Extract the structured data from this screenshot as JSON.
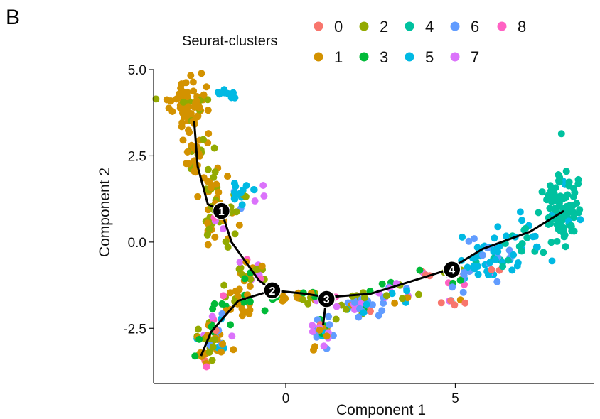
{
  "panel_letter": "B",
  "chart_data": {
    "type": "scatter",
    "xlabel": "Component 1",
    "ylabel": "Component 2",
    "xlim": [
      -3.9,
      9.1
    ],
    "ylim": [
      -4.1,
      5.0
    ],
    "x_ticks": [
      {
        "value": 0,
        "label": "0"
      },
      {
        "value": 5,
        "label": "5"
      }
    ],
    "y_ticks": [
      {
        "value": 5.0,
        "label": "5.0"
      },
      {
        "value": 2.5,
        "label": "2.5"
      },
      {
        "value": 0.0,
        "label": "0.0"
      },
      {
        "value": -2.5,
        "label": "-2.5"
      }
    ],
    "grid": false,
    "legend": {
      "title": "Seurat-clusters",
      "placement": "top",
      "entries": [
        {
          "label": "0",
          "color": "#F8766D"
        },
        {
          "label": "1",
          "color": "#D39200"
        },
        {
          "label": "2",
          "color": "#93AA00"
        },
        {
          "label": "3",
          "color": "#00BA38"
        },
        {
          "label": "4",
          "color": "#00C19F"
        },
        {
          "label": "5",
          "color": "#00B9E3"
        },
        {
          "label": "6",
          "color": "#619CFF"
        },
        {
          "label": "7",
          "color": "#DB72FB"
        },
        {
          "label": "8",
          "color": "#FF61C3"
        }
      ]
    },
    "trajectory": {
      "color": "#000000",
      "segments": [
        [
          [
            -2.7,
            3.5
          ],
          [
            -2.6,
            2.2
          ],
          [
            -2.3,
            1.1
          ],
          [
            -1.9,
            0.9
          ]
        ],
        [
          [
            -1.9,
            0.9
          ],
          [
            -1.6,
            0.0
          ],
          [
            -0.8,
            -1.1
          ],
          [
            -0.4,
            -1.4
          ]
        ],
        [
          [
            -0.4,
            -1.4
          ],
          [
            -1.4,
            -1.7
          ],
          [
            -2.2,
            -2.6
          ],
          [
            -2.5,
            -3.3
          ]
        ],
        [
          [
            -0.4,
            -1.4
          ],
          [
            0.6,
            -1.5
          ],
          [
            1.2,
            -1.6
          ]
        ],
        [
          [
            1.2,
            -1.6
          ],
          [
            1.1,
            -2.4
          ]
        ],
        [
          [
            1.2,
            -1.6
          ],
          [
            2.5,
            -1.5
          ],
          [
            3.5,
            -1.2
          ],
          [
            4.8,
            -0.8
          ]
        ],
        [
          [
            4.8,
            -0.8
          ],
          [
            5.8,
            -0.2
          ],
          [
            7.2,
            0.3
          ],
          [
            8.2,
            0.9
          ]
        ]
      ]
    },
    "branch_points": [
      {
        "label": "1",
        "x": -1.9,
        "y": 0.9
      },
      {
        "label": "2",
        "x": -0.4,
        "y": -1.4
      },
      {
        "label": "3",
        "x": 1.2,
        "y": -1.65
      },
      {
        "label": "4",
        "x": 4.9,
        "y": -0.8
      }
    ],
    "clouds": [
      {
        "cx": -2.85,
        "cy": 4.0,
        "sx": 0.28,
        "sy": 0.35,
        "n": 70,
        "w": [
          0,
          90,
          10,
          0,
          0,
          0,
          0,
          0,
          0
        ]
      },
      {
        "cx": -2.65,
        "cy": 2.6,
        "sx": 0.18,
        "sy": 0.35,
        "n": 30,
        "w": [
          0,
          70,
          30,
          0,
          0,
          0,
          0,
          0,
          0
        ]
      },
      {
        "cx": -2.2,
        "cy": 1.6,
        "sx": 0.15,
        "sy": 0.4,
        "n": 25,
        "w": [
          0,
          60,
          35,
          5,
          0,
          0,
          0,
          0,
          0
        ]
      },
      {
        "cx": -2.0,
        "cy": 0.7,
        "sx": 0.25,
        "sy": 0.3,
        "n": 30,
        "w": [
          0,
          30,
          50,
          10,
          0,
          0,
          0,
          5,
          5
        ]
      },
      {
        "cx": -1.75,
        "cy": 4.3,
        "sx": 0.2,
        "sy": 0.12,
        "n": 8,
        "w": [
          0,
          0,
          0,
          0,
          0,
          100,
          0,
          0,
          0
        ]
      },
      {
        "cx": -1.1,
        "cy": 1.4,
        "sx": 0.3,
        "sy": 0.2,
        "n": 22,
        "w": [
          0,
          0,
          10,
          0,
          0,
          70,
          10,
          10,
          0
        ]
      },
      {
        "cx": -1.5,
        "cy": 0.0,
        "sx": 0.12,
        "sy": 0.3,
        "n": 5,
        "w": [
          0,
          50,
          50,
          0,
          0,
          0,
          0,
          0,
          0
        ]
      },
      {
        "cx": -1.0,
        "cy": -0.8,
        "sx": 0.25,
        "sy": 0.25,
        "n": 25,
        "w": [
          5,
          40,
          25,
          15,
          0,
          0,
          0,
          10,
          5
        ]
      },
      {
        "cx": -1.4,
        "cy": -1.8,
        "sx": 0.4,
        "sy": 0.25,
        "n": 30,
        "w": [
          0,
          40,
          30,
          25,
          0,
          0,
          0,
          0,
          5
        ]
      },
      {
        "cx": -2.2,
        "cy": -2.9,
        "sx": 0.25,
        "sy": 0.4,
        "n": 50,
        "w": [
          5,
          30,
          25,
          15,
          0,
          5,
          10,
          5,
          5
        ]
      },
      {
        "cx": 0.2,
        "cy": -1.6,
        "sx": 0.3,
        "sy": 0.1,
        "n": 15,
        "w": [
          0,
          50,
          40,
          10,
          0,
          0,
          0,
          0,
          0
        ]
      },
      {
        "cx": 0.8,
        "cy": -1.6,
        "sx": 0.12,
        "sy": 0.12,
        "n": 10,
        "w": [
          0,
          20,
          30,
          20,
          0,
          0,
          0,
          20,
          10
        ]
      },
      {
        "cx": 1.05,
        "cy": -2.6,
        "sx": 0.15,
        "sy": 0.3,
        "n": 30,
        "w": [
          5,
          15,
          15,
          10,
          0,
          10,
          35,
          10,
          0
        ]
      },
      {
        "cx": 2.2,
        "cy": -1.75,
        "sx": 0.4,
        "sy": 0.18,
        "n": 40,
        "w": [
          5,
          10,
          15,
          10,
          0,
          10,
          30,
          15,
          5
        ]
      },
      {
        "cx": 3.2,
        "cy": -1.4,
        "sx": 0.35,
        "sy": 0.15,
        "n": 20,
        "w": [
          5,
          10,
          20,
          15,
          0,
          10,
          10,
          25,
          5
        ]
      },
      {
        "cx": 4.2,
        "cy": -0.9,
        "sx": 0.3,
        "sy": 0.12,
        "n": 8,
        "w": [
          20,
          10,
          20,
          10,
          0,
          20,
          0,
          20,
          0
        ]
      },
      {
        "cx": 5.1,
        "cy": -1.2,
        "sx": 0.2,
        "sy": 0.3,
        "n": 20,
        "w": [
          15,
          5,
          5,
          5,
          0,
          20,
          25,
          10,
          15
        ]
      },
      {
        "cx": 6.1,
        "cy": -0.5,
        "sx": 0.45,
        "sy": 0.35,
        "n": 50,
        "w": [
          3,
          0,
          2,
          5,
          10,
          55,
          20,
          5,
          0
        ]
      },
      {
        "cx": 7.0,
        "cy": 0.0,
        "sx": 0.4,
        "sy": 0.35,
        "n": 25,
        "w": [
          0,
          0,
          0,
          0,
          40,
          55,
          5,
          0,
          0
        ]
      },
      {
        "cx": 8.2,
        "cy": 1.0,
        "sx": 0.28,
        "sy": 0.55,
        "n": 100,
        "w": [
          0,
          0,
          0,
          0,
          95,
          5,
          0,
          0,
          0
        ]
      },
      {
        "cx": 5.0,
        "cy": -1.8,
        "sx": 0.4,
        "sy": 0.1,
        "n": 3,
        "w": [
          100,
          0,
          0,
          0,
          0,
          0,
          0,
          0,
          0
        ]
      }
    ]
  }
}
